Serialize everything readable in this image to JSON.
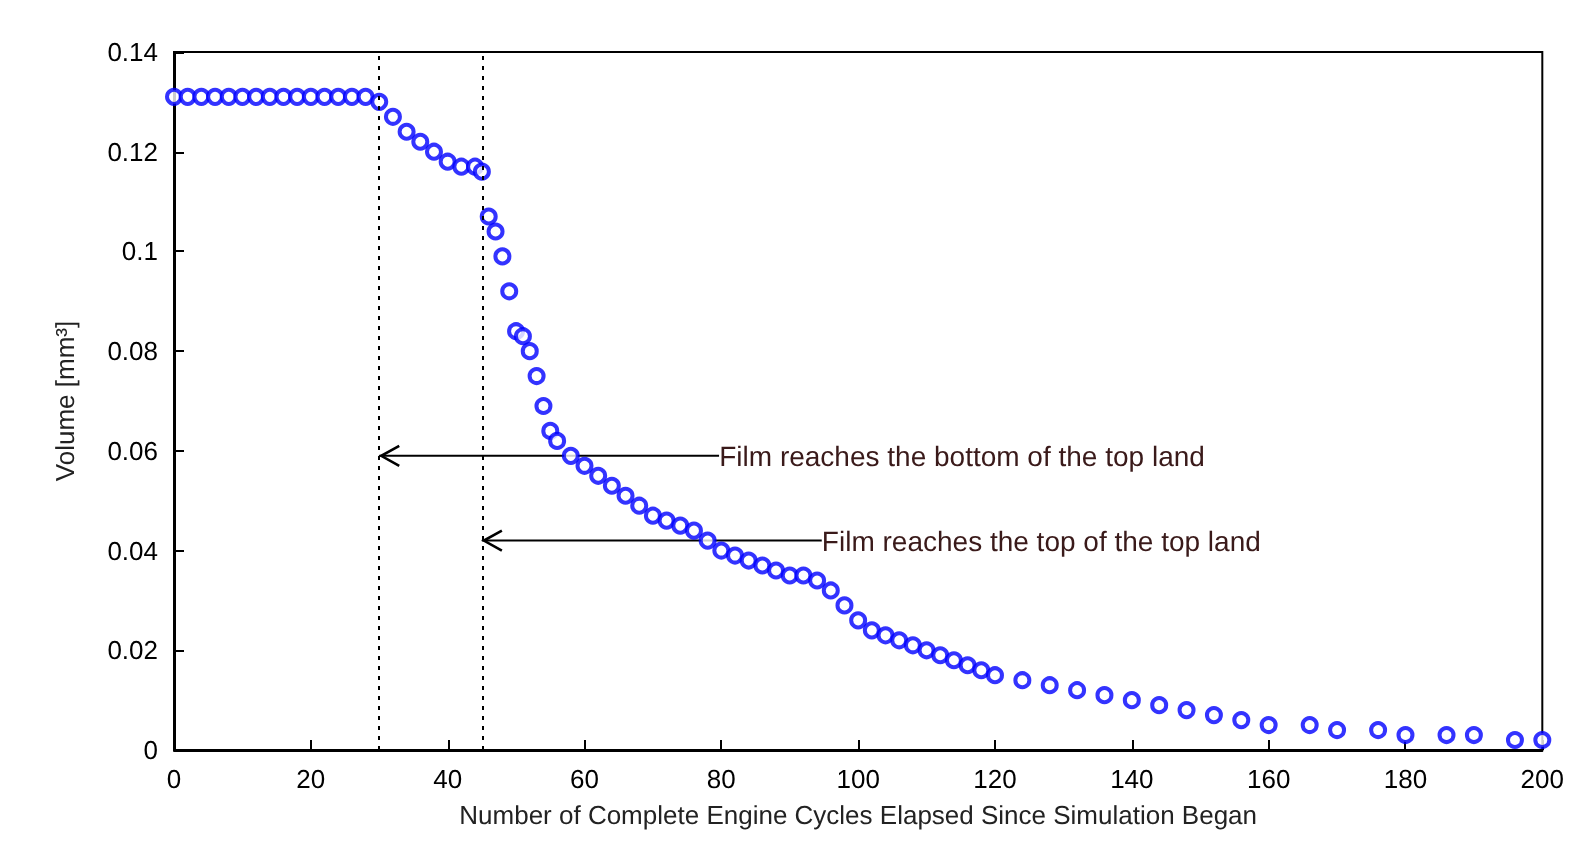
{
  "chart_data": {
    "type": "scatter",
    "xlabel": "Number of Complete Engine Cycles Elapsed Since Simulation Began",
    "ylabel": "Volume [mm³]",
    "xlim": [
      0,
      200
    ],
    "xticks": [
      0,
      20,
      40,
      60,
      80,
      100,
      120,
      140,
      160,
      180,
      200
    ],
    "ylim": [
      0,
      0.14
    ],
    "yticks": [
      0,
      0.02,
      0.04,
      0.06,
      0.08,
      0.1,
      0.12,
      0.14
    ],
    "grid": false,
    "marker": "circle",
    "series": [
      {
        "color": "#0000ff",
        "x": [
          0,
          2,
          4,
          6,
          8,
          10,
          12,
          14,
          16,
          18,
          20,
          22,
          24,
          26,
          28,
          30,
          32,
          34,
          36,
          38,
          40,
          42,
          44,
          45,
          46,
          47,
          48,
          49,
          50,
          51,
          52,
          53,
          54,
          55,
          56,
          58,
          60,
          62,
          64,
          66,
          68,
          70,
          72,
          74,
          76,
          78,
          80,
          82,
          84,
          86,
          88,
          90,
          92,
          94,
          96,
          98,
          100,
          102,
          104,
          106,
          108,
          110,
          112,
          114,
          116,
          118,
          120,
          124,
          128,
          132,
          136,
          140,
          144,
          148,
          152,
          156,
          160,
          166,
          170,
          176,
          180,
          186,
          190,
          196,
          200
        ],
        "values": [
          0.131,
          0.131,
          0.131,
          0.131,
          0.131,
          0.131,
          0.131,
          0.131,
          0.131,
          0.131,
          0.131,
          0.131,
          0.131,
          0.131,
          0.131,
          0.13,
          0.127,
          0.124,
          0.122,
          0.12,
          0.118,
          0.117,
          0.117,
          0.116,
          0.107,
          0.104,
          0.099,
          0.092,
          0.084,
          0.083,
          0.08,
          0.075,
          0.069,
          0.064,
          0.062,
          0.059,
          0.057,
          0.055,
          0.053,
          0.051,
          0.049,
          0.047,
          0.046,
          0.045,
          0.044,
          0.042,
          0.04,
          0.039,
          0.038,
          0.037,
          0.036,
          0.035,
          0.035,
          0.034,
          0.032,
          0.029,
          0.026,
          0.024,
          0.023,
          0.022,
          0.021,
          0.02,
          0.019,
          0.018,
          0.017,
          0.016,
          0.015,
          0.014,
          0.013,
          0.012,
          0.011,
          0.01,
          0.009,
          0.008,
          0.007,
          0.006,
          0.005,
          0.005,
          0.004,
          0.004,
          0.003,
          0.003,
          0.003,
          0.002,
          0.002
        ]
      }
    ],
    "ref_lines": [
      {
        "axis": "x",
        "value": 30,
        "line_style": "dotted",
        "color": "#000000"
      },
      {
        "axis": "x",
        "value": 45,
        "line_style": "dotted",
        "color": "#000000"
      }
    ],
    "annotations": [
      {
        "text": "Film reaches the bottom of the top land",
        "x": 30,
        "y": 0.059
      },
      {
        "text": "Film reaches the top of the top land",
        "x": 45,
        "y": 0.042
      }
    ]
  }
}
